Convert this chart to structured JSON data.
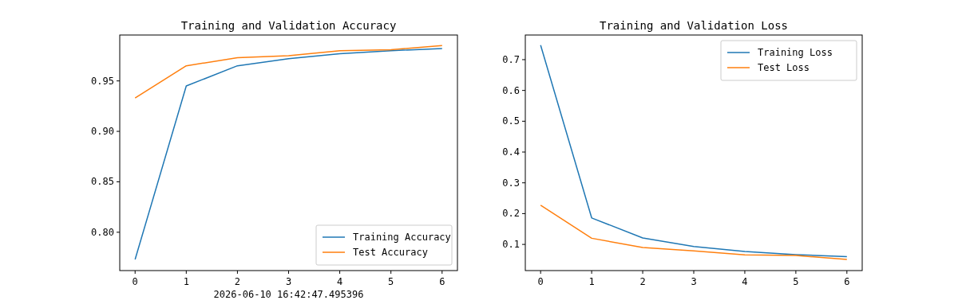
{
  "chart_data": [
    {
      "type": "line",
      "title": "Training and Validation Accuracy",
      "x": [
        0,
        1,
        2,
        3,
        4,
        5,
        6
      ],
      "xlim": [
        -0.3,
        6.3
      ],
      "xticks": [
        0,
        1,
        2,
        3,
        4,
        5,
        6
      ],
      "ylim": [
        0.762,
        0.9955
      ],
      "yticks": [
        {
          "value": 0.8,
          "label": "0.80"
        },
        {
          "value": 0.85,
          "label": "0.85"
        },
        {
          "value": 0.9,
          "label": "0.90"
        },
        {
          "value": 0.95,
          "label": "0.95"
        }
      ],
      "legend": "bottom right",
      "grid": false,
      "series": [
        {
          "name": "Training Accuracy",
          "color": "#1f77b4",
          "values": [
            0.773,
            0.945,
            0.965,
            0.972,
            0.977,
            0.98,
            0.982
          ]
        },
        {
          "name": "Test Accuracy",
          "color": "#ff7f0e",
          "values": [
            0.933,
            0.965,
            0.973,
            0.975,
            0.98,
            0.981,
            0.985
          ]
        }
      ],
      "annotations": [
        "2026-06-10 16:42:47.495396"
      ]
    },
    {
      "type": "line",
      "title": "Training and Validation Loss",
      "x": [
        0,
        1,
        2,
        3,
        4,
        5,
        6
      ],
      "xlim": [
        -0.3,
        6.3
      ],
      "xticks": [
        0,
        1,
        2,
        3,
        4,
        5,
        6
      ],
      "ylim": [
        0.015,
        0.78
      ],
      "yticks": [
        0.1,
        0.2,
        0.3,
        0.4,
        0.5,
        0.6,
        0.7
      ],
      "legend": "top right",
      "grid": false,
      "series": [
        {
          "name": "Training Loss",
          "color": "#1f77b4",
          "values": [
            0.747,
            0.186,
            0.121,
            0.093,
            0.077,
            0.067,
            0.06
          ]
        },
        {
          "name": "Test Loss",
          "color": "#ff7f0e",
          "values": [
            0.227,
            0.12,
            0.09,
            0.079,
            0.066,
            0.064,
            0.051
          ]
        }
      ]
    }
  ]
}
